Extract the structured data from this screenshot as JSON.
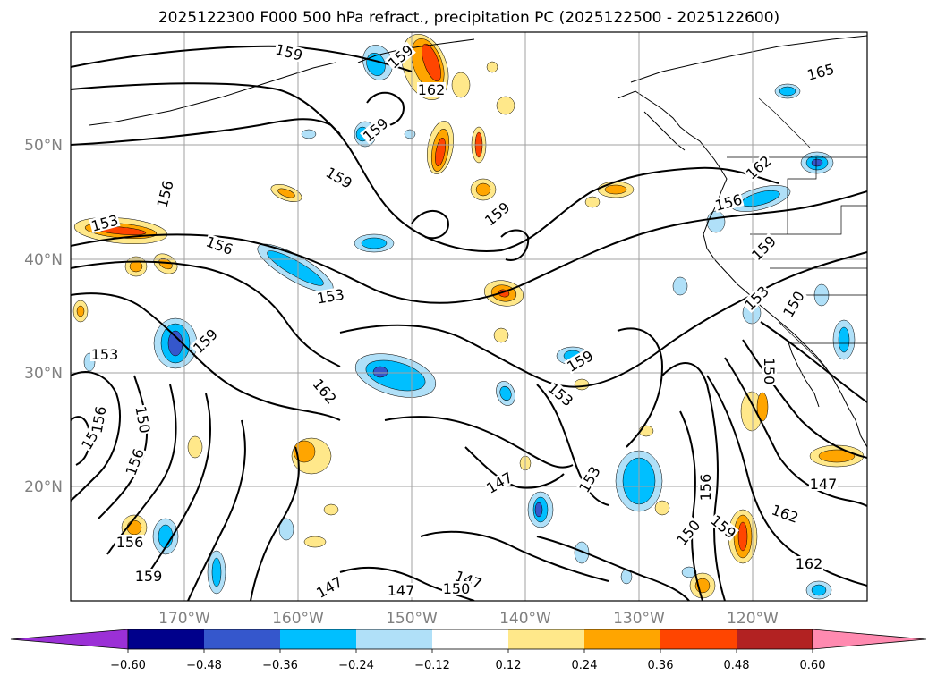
{
  "title": "2025122300 F000 500 hPa refract., precipitation PC (2025122500 - 2025122600)",
  "map": {
    "lon_ticks": [
      "170°W",
      "160°W",
      "150°W",
      "140°W",
      "130°W",
      "120°W"
    ],
    "lat_ticks": [
      "50°N",
      "40°N",
      "30°N",
      "20°N"
    ],
    "gridline_color": "#a0a0a0",
    "tick_label_color": "#808080"
  },
  "contour_labels": [
    "159",
    "159",
    "162",
    "165",
    "159",
    "159",
    "156",
    "159",
    "153",
    "156",
    "153",
    "162",
    "156",
    "159",
    "150",
    "159",
    "153",
    "153",
    "159",
    "153",
    "162",
    "150",
    "156",
    "150",
    "156",
    "147",
    "153",
    "159",
    "147",
    "162",
    "156",
    "156",
    "150",
    "150",
    "162",
    "159",
    "147",
    "147",
    "147",
    "150"
  ],
  "colorbar": {
    "colors": [
      "#9b30d6",
      "#00008b",
      "#3557cc",
      "#00bfff",
      "#b0e0f8",
      "#ffffff",
      "#ffe88a",
      "#ffa500",
      "#ff4500",
      "#b22222",
      "#ff8ab0"
    ],
    "tick_labels": [
      "−0.60",
      "−0.48",
      "−0.36",
      "−0.24",
      "−0.12",
      "0.12",
      "0.24",
      "0.36",
      "0.48",
      "0.60"
    ]
  }
}
